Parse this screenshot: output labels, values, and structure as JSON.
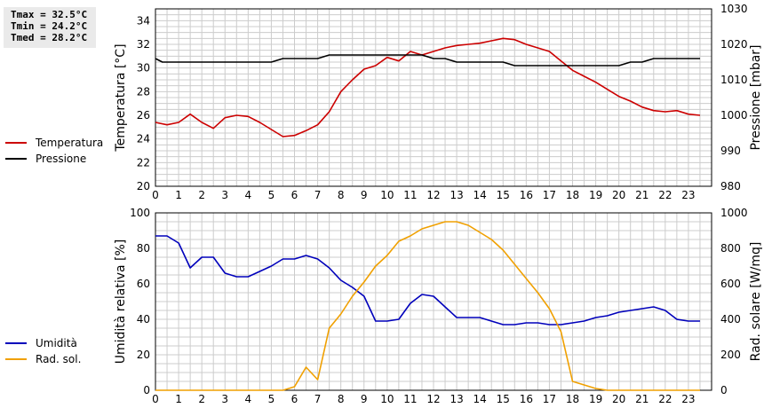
{
  "stats": {
    "tmax": "Tmax = 32.5°C",
    "tmin": "Tmin = 24.2°C",
    "tmed": "Tmed = 28.2°C"
  },
  "legend_top": {
    "temp_label": "Temperatura",
    "press_label": "Pressione"
  },
  "legend_bottom": {
    "hum_label": "Umidità",
    "rad_label": "Rad. sol."
  },
  "colors": {
    "temperature": "#cc0000",
    "pressure": "#000000",
    "humidity": "#0000bb",
    "radiation": "#f0a000",
    "grid": "#cccccc"
  },
  "chart_data": [
    {
      "type": "line",
      "xlabel": "",
      "x_ticks": [
        0,
        1,
        2,
        3,
        4,
        5,
        6,
        7,
        8,
        9,
        10,
        11,
        12,
        13,
        14,
        15,
        16,
        17,
        18,
        19,
        20,
        21,
        22,
        23
      ],
      "xlim": [
        0,
        24
      ],
      "grid": true,
      "legend_position": "left",
      "left_axis": {
        "label": "Temperatura [°C]",
        "ylim": [
          20,
          35
        ],
        "ticks": [
          20,
          22,
          24,
          26,
          28,
          30,
          32,
          34
        ]
      },
      "right_axis": {
        "label": "Pressione [mbar]",
        "ylim": [
          980,
          1030
        ],
        "ticks": [
          980,
          990,
          1000,
          1010,
          1020,
          1030
        ]
      },
      "series": [
        {
          "name": "Temperatura",
          "axis": "left",
          "x": [
            0,
            0.5,
            1,
            1.5,
            2,
            2.5,
            3,
            3.5,
            4,
            4.5,
            5,
            5.5,
            6,
            6.5,
            7,
            7.5,
            8,
            8.5,
            9,
            9.5,
            10,
            10.5,
            11,
            11.5,
            12,
            12.5,
            13,
            13.5,
            14,
            14.5,
            15,
            15.5,
            16,
            16.5,
            17,
            17.5,
            18,
            18.5,
            19,
            19.5,
            20,
            20.5,
            21,
            21.5,
            22,
            22.5,
            23,
            23.5
          ],
          "y": [
            25.4,
            25.2,
            25.4,
            26.1,
            25.4,
            24.9,
            25.8,
            26.0,
            25.9,
            25.4,
            24.8,
            24.2,
            24.3,
            24.7,
            25.2,
            26.3,
            28.0,
            29.0,
            29.9,
            30.2,
            30.9,
            30.6,
            31.4,
            31.1,
            31.4,
            31.7,
            31.9,
            32.0,
            32.1,
            32.3,
            32.5,
            32.4,
            32.0,
            31.7,
            31.4,
            30.6,
            29.8,
            29.3,
            28.8,
            28.2,
            27.6,
            27.2,
            26.7,
            26.4,
            26.3,
            26.4,
            26.1,
            26.0
          ]
        },
        {
          "name": "Pressione",
          "axis": "right",
          "x": [
            0,
            0.3,
            1,
            2,
            3,
            4,
            5,
            5.5,
            6,
            7,
            7.5,
            8,
            9,
            10,
            11,
            11.5,
            12,
            12.5,
            13,
            14,
            15,
            15.5,
            16,
            17,
            18,
            19,
            20,
            20.5,
            21,
            21.5,
            22,
            23,
            23.5
          ],
          "y": [
            1016,
            1015,
            1015,
            1015,
            1015,
            1015,
            1015,
            1016,
            1016,
            1016,
            1017,
            1017,
            1017,
            1017,
            1017,
            1017,
            1016,
            1016,
            1015,
            1015,
            1015,
            1014,
            1014,
            1014,
            1014,
            1014,
            1014,
            1015,
            1015,
            1016,
            1016,
            1016,
            1016
          ]
        }
      ]
    },
    {
      "type": "line",
      "xlabel": "",
      "x_ticks": [
        0,
        1,
        2,
        3,
        4,
        5,
        6,
        7,
        8,
        9,
        10,
        11,
        12,
        13,
        14,
        15,
        16,
        17,
        18,
        19,
        20,
        21,
        22,
        23
      ],
      "xlim": [
        0,
        24
      ],
      "grid": true,
      "legend_position": "left",
      "left_axis": {
        "label": "Umidità relativa [%]",
        "ylim": [
          0,
          100
        ],
        "ticks": [
          0,
          20,
          40,
          60,
          80,
          100
        ]
      },
      "right_axis": {
        "label": "Rad. solare [W/mq]",
        "ylim": [
          0,
          1000
        ],
        "ticks": [
          0,
          200,
          400,
          600,
          800,
          1000
        ]
      },
      "series": [
        {
          "name": "Umidità",
          "axis": "left",
          "x": [
            0,
            0.5,
            1,
            1.5,
            2,
            2.5,
            3,
            3.5,
            4,
            4.5,
            5,
            5.5,
            6,
            6.5,
            7,
            7.5,
            8,
            8.5,
            9,
            9.5,
            10,
            10.5,
            11,
            11.5,
            12,
            12.5,
            13,
            13.5,
            14,
            14.5,
            15,
            15.5,
            16,
            16.5,
            17,
            17.5,
            18,
            18.5,
            19,
            19.5,
            20,
            20.5,
            21,
            21.5,
            22,
            22.5,
            23,
            23.5
          ],
          "y": [
            87,
            87,
            83,
            69,
            75,
            75,
            66,
            64,
            64,
            67,
            70,
            74,
            74,
            76,
            74,
            69,
            62,
            58,
            53,
            39,
            39,
            40,
            49,
            54,
            53,
            47,
            41,
            41,
            41,
            39,
            37,
            37,
            38,
            38,
            37,
            37,
            38,
            39,
            41,
            42,
            44,
            45,
            46,
            47,
            45,
            40,
            39,
            39
          ]
        },
        {
          "name": "Rad. sol.",
          "axis": "right",
          "x": [
            0,
            5,
            5.5,
            6,
            6.5,
            7,
            7.5,
            8,
            8.5,
            9,
            9.5,
            10,
            10.5,
            11,
            11.5,
            12,
            12.5,
            13,
            13.5,
            14,
            14.5,
            15,
            15.5,
            16,
            16.5,
            17,
            17.5,
            18,
            18.5,
            19,
            19.5,
            20,
            23.5
          ],
          "y": [
            0,
            0,
            0,
            20,
            130,
            60,
            350,
            430,
            530,
            610,
            700,
            760,
            840,
            870,
            910,
            930,
            950,
            950,
            930,
            890,
            850,
            790,
            710,
            630,
            550,
            460,
            330,
            50,
            30,
            10,
            0,
            0,
            0
          ]
        }
      ]
    }
  ]
}
